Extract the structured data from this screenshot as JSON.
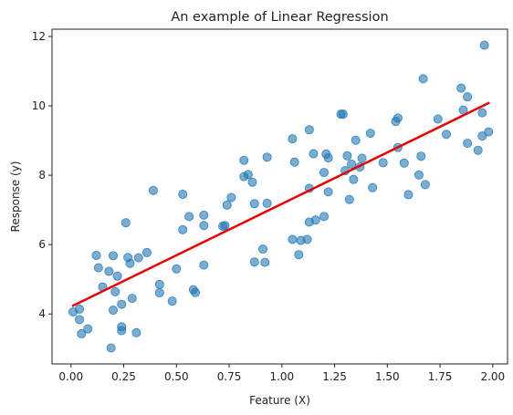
{
  "chart_data": {
    "type": "scatter",
    "title": "An example of Linear Regression",
    "xlabel": "Feature (X)",
    "ylabel": "Response (y)",
    "xlim": [
      -0.09,
      2.07
    ],
    "ylim": [
      2.56,
      12.21
    ],
    "grid": false,
    "xticks": [
      0.0,
      0.25,
      0.5,
      0.75,
      1.0,
      1.25,
      1.5,
      1.75,
      2.0
    ],
    "xtick_labels": [
      "0.00",
      "0.25",
      "0.50",
      "0.75",
      "1.00",
      "1.25",
      "1.50",
      "1.75",
      "2.00"
    ],
    "yticks": [
      4,
      6,
      8,
      10,
      12
    ],
    "ytick_labels": [
      "4",
      "6",
      "8",
      "10",
      "12"
    ],
    "series": [
      {
        "type": "scatter",
        "color": "#1f77b4",
        "alpha": 0.6,
        "points": [
          [
            0.01,
            4.06
          ],
          [
            0.04,
            4.14
          ],
          [
            0.04,
            3.84
          ],
          [
            0.05,
            3.43
          ],
          [
            0.08,
            3.57
          ],
          [
            0.12,
            5.69
          ],
          [
            0.13,
            5.33
          ],
          [
            0.15,
            4.78
          ],
          [
            0.18,
            5.23
          ],
          [
            0.19,
            3.02
          ],
          [
            0.2,
            5.68
          ],
          [
            0.2,
            4.11
          ],
          [
            0.21,
            4.64
          ],
          [
            0.22,
            5.09
          ],
          [
            0.24,
            4.28
          ],
          [
            0.24,
            3.63
          ],
          [
            0.24,
            3.52
          ],
          [
            0.26,
            6.63
          ],
          [
            0.27,
            5.63
          ],
          [
            0.28,
            5.46
          ],
          [
            0.29,
            4.45
          ],
          [
            0.31,
            3.46
          ],
          [
            0.32,
            5.62
          ],
          [
            0.36,
            5.77
          ],
          [
            0.39,
            7.56
          ],
          [
            0.42,
            4.85
          ],
          [
            0.42,
            4.61
          ],
          [
            0.48,
            4.37
          ],
          [
            0.5,
            5.3
          ],
          [
            0.53,
            6.43
          ],
          [
            0.53,
            7.45
          ],
          [
            0.56,
            6.81
          ],
          [
            0.58,
            4.7
          ],
          [
            0.59,
            4.62
          ],
          [
            0.63,
            6.85
          ],
          [
            0.63,
            6.55
          ],
          [
            0.63,
            5.41
          ],
          [
            0.72,
            6.53
          ],
          [
            0.73,
            6.55
          ],
          [
            0.74,
            7.14
          ],
          [
            0.76,
            7.36
          ],
          [
            0.82,
            8.43
          ],
          [
            0.82,
            7.96
          ],
          [
            0.84,
            8.02
          ],
          [
            0.86,
            7.8
          ],
          [
            0.87,
            7.18
          ],
          [
            0.87,
            5.5
          ],
          [
            0.91,
            5.87
          ],
          [
            0.92,
            5.49
          ],
          [
            0.93,
            8.52
          ],
          [
            0.93,
            7.19
          ],
          [
            1.05,
            9.05
          ],
          [
            1.05,
            6.15
          ],
          [
            1.06,
            8.38
          ],
          [
            1.08,
            5.71
          ],
          [
            1.09,
            6.12
          ],
          [
            1.12,
            6.15
          ],
          [
            1.13,
            9.31
          ],
          [
            1.13,
            7.62
          ],
          [
            1.13,
            6.65
          ],
          [
            1.15,
            8.62
          ],
          [
            1.16,
            6.71
          ],
          [
            1.2,
            8.08
          ],
          [
            1.2,
            6.81
          ],
          [
            1.21,
            8.61
          ],
          [
            1.22,
            8.5
          ],
          [
            1.22,
            7.52
          ],
          [
            1.28,
            9.76
          ],
          [
            1.29,
            9.76
          ],
          [
            1.3,
            8.13
          ],
          [
            1.31,
            8.56
          ],
          [
            1.32,
            7.3
          ],
          [
            1.33,
            8.32
          ],
          [
            1.34,
            7.88
          ],
          [
            1.35,
            9.01
          ],
          [
            1.37,
            8.24
          ],
          [
            1.38,
            8.49
          ],
          [
            1.42,
            9.21
          ],
          [
            1.43,
            7.64
          ],
          [
            1.48,
            8.36
          ],
          [
            1.54,
            9.55
          ],
          [
            1.55,
            9.65
          ],
          [
            1.55,
            8.8
          ],
          [
            1.58,
            8.35
          ],
          [
            1.6,
            7.44
          ],
          [
            1.65,
            8.01
          ],
          [
            1.66,
            8.55
          ],
          [
            1.67,
            10.78
          ],
          [
            1.68,
            7.73
          ],
          [
            1.74,
            9.62
          ],
          [
            1.78,
            9.18
          ],
          [
            1.85,
            10.51
          ],
          [
            1.86,
            9.88
          ],
          [
            1.88,
            10.26
          ],
          [
            1.88,
            8.92
          ],
          [
            1.93,
            8.72
          ],
          [
            1.95,
            9.13
          ],
          [
            1.95,
            9.8
          ],
          [
            1.96,
            11.75
          ],
          [
            1.98,
            9.25
          ]
        ]
      },
      {
        "type": "line",
        "color": "#e60000",
        "points": [
          [
            0.01,
            4.24
          ],
          [
            1.98,
            10.08
          ]
        ]
      }
    ]
  }
}
